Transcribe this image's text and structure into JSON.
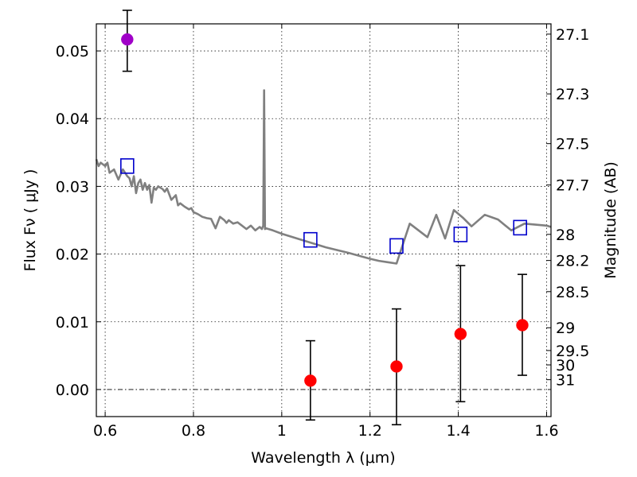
{
  "chart_data": {
    "type": "scatter",
    "title": "",
    "xlabel": "Wavelength  λ (μm)",
    "ylabel": "Flux  Fν  ( μJy )",
    "y2label": "Magnitude (AB)",
    "xlim": [
      0.58,
      1.61
    ],
    "ylim": [
      -0.004,
      0.054
    ],
    "x_ticks": [
      0.6,
      0.8,
      1.0,
      1.2,
      1.4,
      1.6
    ],
    "x_tick_labels": [
      "0.6",
      "0.8",
      "1",
      "1.2",
      "1.4",
      "1.6"
    ],
    "y_ticks": [
      0.0,
      0.01,
      0.02,
      0.03,
      0.04,
      0.05
    ],
    "y_tick_labels": [
      "0.00",
      "0.01",
      "0.02",
      "0.03",
      "0.04",
      "0.05"
    ],
    "mag_ticks": [
      27.1,
      27.3,
      27.5,
      27.7,
      28.0,
      28.2,
      28.5,
      29.0,
      29.5,
      30.0,
      31.0
    ],
    "mag_tick_labels": [
      "27.1",
      "27.3",
      "27.5",
      "27.7",
      "28",
      "28.2",
      "28.5",
      "29",
      "29.5",
      "30",
      "31"
    ],
    "grid": true,
    "zero_line": 0.0,
    "series": [
      {
        "name": "model-spectrum",
        "kind": "line",
        "color": "#808080",
        "x": [
          0.58,
          0.585,
          0.59,
          0.6,
          0.605,
          0.61,
          0.62,
          0.63,
          0.64,
          0.65,
          0.655,
          0.66,
          0.665,
          0.67,
          0.675,
          0.68,
          0.685,
          0.69,
          0.695,
          0.7,
          0.705,
          0.71,
          0.715,
          0.72,
          0.73,
          0.735,
          0.74,
          0.75,
          0.76,
          0.765,
          0.77,
          0.78,
          0.79,
          0.795,
          0.8,
          0.81,
          0.82,
          0.83,
          0.84,
          0.85,
          0.86,
          0.87,
          0.875,
          0.88,
          0.89,
          0.9,
          0.91,
          0.92,
          0.93,
          0.94,
          0.95,
          0.955,
          0.958,
          0.96,
          0.962,
          0.965,
          0.98,
          1.0,
          1.05,
          1.1,
          1.15,
          1.2,
          1.22,
          1.24,
          1.26,
          1.29,
          1.31,
          1.33,
          1.35,
          1.37,
          1.39,
          1.41,
          1.43,
          1.46,
          1.49,
          1.52,
          1.55,
          1.6,
          1.61
        ],
        "y": [
          0.034,
          0.033,
          0.0335,
          0.033,
          0.0335,
          0.032,
          0.0325,
          0.031,
          0.0325,
          0.0315,
          0.0312,
          0.03,
          0.0315,
          0.029,
          0.0305,
          0.031,
          0.0295,
          0.0305,
          0.0295,
          0.0302,
          0.0276,
          0.0298,
          0.0295,
          0.03,
          0.0296,
          0.0292,
          0.0297,
          0.028,
          0.0287,
          0.0272,
          0.0275,
          0.027,
          0.0266,
          0.0268,
          0.0262,
          0.0259,
          0.0255,
          0.0253,
          0.0252,
          0.0238,
          0.0255,
          0.025,
          0.0246,
          0.025,
          0.0245,
          0.0247,
          0.0242,
          0.0237,
          0.0242,
          0.0235,
          0.024,
          0.0237,
          0.0242,
          0.0442,
          0.0237,
          0.0238,
          0.0235,
          0.023,
          0.022,
          0.021,
          0.0202,
          0.0193,
          0.019,
          0.0188,
          0.0186,
          0.0245,
          0.0235,
          0.0225,
          0.0258,
          0.0223,
          0.0265,
          0.0254,
          0.0241,
          0.0258,
          0.0251,
          0.0235,
          0.0245,
          0.0242,
          0.024
        ]
      },
      {
        "name": "model-band-flux",
        "kind": "open-square",
        "color": "#0000cc",
        "x": [
          0.65,
          1.065,
          1.26,
          1.405,
          1.54
        ],
        "y": [
          0.033,
          0.0221,
          0.0212,
          0.0229,
          0.0239
        ]
      },
      {
        "name": "optical-detection",
        "kind": "filled-circle",
        "color": "#a000c8",
        "x": [
          0.65
        ],
        "y": [
          0.0517
        ],
        "yerr_low": [
          0.047
        ],
        "yerr_high": [
          0.056
        ]
      },
      {
        "name": "nir-photometry",
        "kind": "filled-circle",
        "color": "#ff0000",
        "x": [
          1.065,
          1.26,
          1.405,
          1.545
        ],
        "y": [
          0.0013,
          0.0034,
          0.0082,
          0.0095
        ],
        "yerr_low": [
          -0.0045,
          -0.0052,
          -0.0018,
          0.0021
        ],
        "yerr_high": [
          0.0072,
          0.0119,
          0.0183,
          0.017
        ]
      }
    ]
  }
}
